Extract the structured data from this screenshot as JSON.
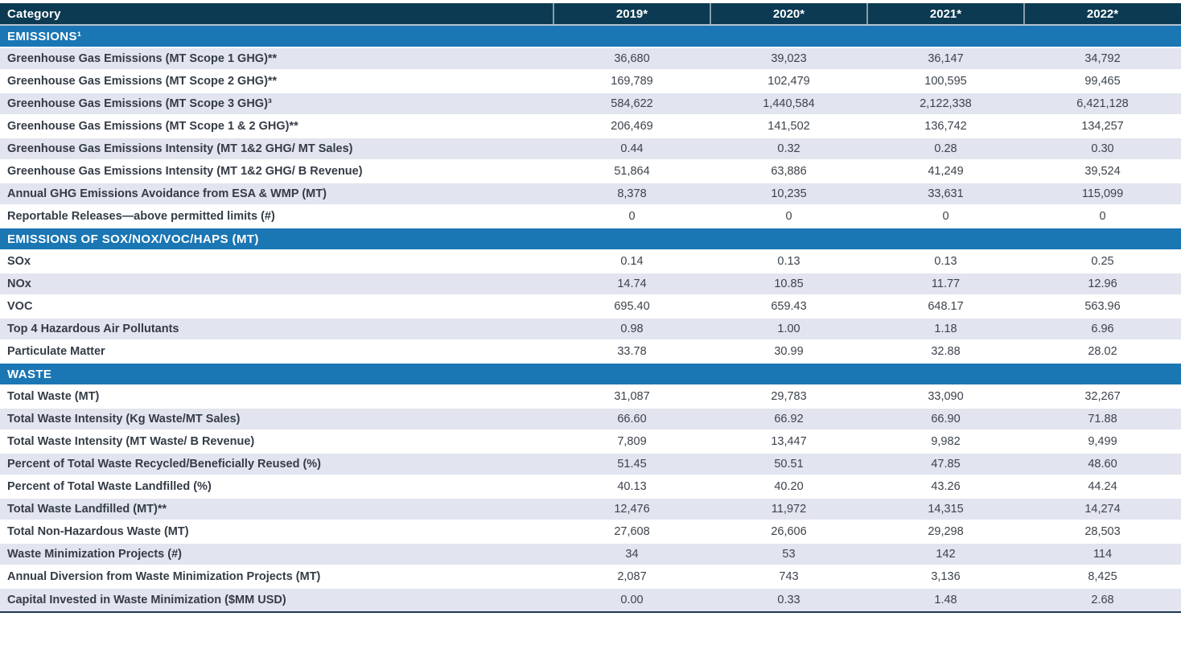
{
  "table": {
    "header": {
      "category_label": "Category",
      "years": [
        "2019*",
        "2020*",
        "2021*",
        "2022*"
      ]
    },
    "sections": [
      {
        "title": "EMISSIONS¹",
        "first_row_shaded": true,
        "rows": [
          {
            "label": "Greenhouse Gas Emissions (MT Scope 1 GHG)**",
            "values": [
              "36,680",
              "39,023",
              "36,147",
              "34,792"
            ]
          },
          {
            "label": "Greenhouse Gas Emissions (MT Scope 2 GHG)**",
            "values": [
              "169,789",
              "102,479",
              "100,595",
              "99,465"
            ]
          },
          {
            "label": "Greenhouse Gas Emissions (MT Scope 3 GHG)³",
            "values": [
              "584,622",
              "1,440,584",
              "2,122,338",
              "6,421,128"
            ]
          },
          {
            "label": "Greenhouse Gas Emissions (MT Scope 1 & 2 GHG)**",
            "values": [
              "206,469",
              "141,502",
              "136,742",
              "134,257"
            ]
          },
          {
            "label": "Greenhouse Gas Emissions Intensity (MT 1&2 GHG/ MT Sales)",
            "values": [
              "0.44",
              "0.32",
              "0.28",
              "0.30"
            ]
          },
          {
            "label": "Greenhouse Gas Emissions Intensity (MT 1&2 GHG/ B Revenue)",
            "values": [
              "51,864",
              "63,886",
              "41,249",
              "39,524"
            ]
          },
          {
            "label": "Annual GHG Emissions Avoidance from ESA & WMP (MT)",
            "values": [
              "8,378",
              "10,235",
              "33,631",
              "115,099"
            ]
          },
          {
            "label": "Reportable Releases—above permitted limits (#)",
            "values": [
              "0",
              "0",
              "0",
              "0"
            ]
          }
        ]
      },
      {
        "title": "EMISSIONS OF SOX/NOX/VOC/HAPS (MT)",
        "first_row_shaded": false,
        "rows": [
          {
            "label": "SOx",
            "values": [
              "0.14",
              "0.13",
              "0.13",
              "0.25"
            ]
          },
          {
            "label": "NOx",
            "values": [
              "14.74",
              "10.85",
              "11.77",
              "12.96"
            ]
          },
          {
            "label": "VOC",
            "values": [
              "695.40",
              "659.43",
              "648.17",
              "563.96"
            ]
          },
          {
            "label": "Top 4 Hazardous Air Pollutants",
            "values": [
              "0.98",
              "1.00",
              "1.18",
              "6.96"
            ]
          },
          {
            "label": "Particulate Matter",
            "values": [
              "33.78",
              "30.99",
              "32.88",
              "28.02"
            ]
          }
        ]
      },
      {
        "title": "WASTE",
        "first_row_shaded": false,
        "rows": [
          {
            "label": "Total Waste (MT)",
            "values": [
              "31,087",
              "29,783",
              "33,090",
              "32,267"
            ]
          },
          {
            "label": "Total Waste Intensity (Kg Waste/MT Sales)",
            "values": [
              "66.60",
              "66.92",
              "66.90",
              "71.88"
            ]
          },
          {
            "label": "Total Waste Intensity (MT Waste/ B Revenue)",
            "values": [
              "7,809",
              "13,447",
              "9,982",
              "9,499"
            ]
          },
          {
            "label": "Percent of Total Waste Recycled/Beneficially Reused (%)",
            "values": [
              "51.45",
              "50.51",
              "47.85",
              "48.60"
            ]
          },
          {
            "label": "Percent of Total Waste Landfilled (%)",
            "values": [
              "40.13",
              "40.20",
              "43.26",
              "44.24"
            ]
          },
          {
            "label": "Total Waste Landfilled (MT)**",
            "values": [
              "12,476",
              "11,972",
              "14,315",
              "14,274"
            ]
          },
          {
            "label": "Total Non-Hazardous Waste (MT)",
            "values": [
              "27,608",
              "26,606",
              "29,298",
              "28,503"
            ]
          },
          {
            "label": "Waste Minimization Projects (#)",
            "values": [
              "34",
              "53",
              "142",
              "114"
            ]
          },
          {
            "label": "Annual Diversion from Waste Minimization Projects (MT)",
            "values": [
              "2,087",
              "743",
              "3,136",
              "8,425"
            ]
          },
          {
            "label": "Capital Invested in Waste Minimization ($MM USD)",
            "values": [
              "0.00",
              "0.33",
              "1.48",
              "2.68"
            ]
          }
        ]
      }
    ]
  },
  "colors": {
    "header_bg": "#0c3a52",
    "section_bg": "#1b76b4",
    "shaded_row_bg": "#e2e4ef",
    "row_text": "#39414b",
    "header_text": "#ffffff",
    "bottom_border": "#1c3a52"
  },
  "chart_data": {
    "type": "table",
    "title": "Environmental performance data table (Emissions and Waste)",
    "columns": [
      "Category",
      "2019*",
      "2020*",
      "2021*",
      "2022*"
    ],
    "sections": [
      {
        "section": "EMISSIONS¹",
        "rows": [
          {
            "category": "Greenhouse Gas Emissions (MT Scope 1 GHG)**",
            "values": [
              36680,
              39023,
              36147,
              34792
            ]
          },
          {
            "category": "Greenhouse Gas Emissions (MT Scope 2 GHG)**",
            "values": [
              169789,
              102479,
              100595,
              99465
            ]
          },
          {
            "category": "Greenhouse Gas Emissions (MT Scope 3 GHG)³",
            "values": [
              584622,
              1440584,
              2122338,
              6421128
            ]
          },
          {
            "category": "Greenhouse Gas Emissions (MT Scope 1 & 2 GHG)**",
            "values": [
              206469,
              141502,
              136742,
              134257
            ]
          },
          {
            "category": "Greenhouse Gas Emissions Intensity (MT 1&2 GHG/ MT Sales)",
            "values": [
              0.44,
              0.32,
              0.28,
              0.3
            ]
          },
          {
            "category": "Greenhouse Gas Emissions Intensity (MT 1&2 GHG/ B Revenue)",
            "values": [
              51864,
              63886,
              41249,
              39524
            ]
          },
          {
            "category": "Annual GHG Emissions Avoidance from ESA & WMP (MT)",
            "values": [
              8378,
              10235,
              33631,
              115099
            ]
          },
          {
            "category": "Reportable Releases—above permitted limits (#)",
            "values": [
              0,
              0,
              0,
              0
            ]
          }
        ]
      },
      {
        "section": "EMISSIONS OF SOX/NOX/VOC/HAPS (MT)",
        "rows": [
          {
            "category": "SOx",
            "values": [
              0.14,
              0.13,
              0.13,
              0.25
            ]
          },
          {
            "category": "NOx",
            "values": [
              14.74,
              10.85,
              11.77,
              12.96
            ]
          },
          {
            "category": "VOC",
            "values": [
              695.4,
              659.43,
              648.17,
              563.96
            ]
          },
          {
            "category": "Top 4 Hazardous Air Pollutants",
            "values": [
              0.98,
              1.0,
              1.18,
              6.96
            ]
          },
          {
            "category": "Particulate Matter",
            "values": [
              33.78,
              30.99,
              32.88,
              28.02
            ]
          }
        ]
      },
      {
        "section": "WASTE",
        "rows": [
          {
            "category": "Total Waste (MT)",
            "values": [
              31087,
              29783,
              33090,
              32267
            ]
          },
          {
            "category": "Total Waste Intensity (Kg Waste/MT Sales)",
            "values": [
              66.6,
              66.92,
              66.9,
              71.88
            ]
          },
          {
            "category": "Total Waste Intensity (MT Waste/ B Revenue)",
            "values": [
              7809,
              13447,
              9982,
              9499
            ]
          },
          {
            "category": "Percent of Total Waste Recycled/Beneficially Reused (%)",
            "values": [
              51.45,
              50.51,
              47.85,
              48.6
            ]
          },
          {
            "category": "Percent of Total Waste Landfilled (%)",
            "values": [
              40.13,
              40.2,
              43.26,
              44.24
            ]
          },
          {
            "category": "Total Waste Landfilled (MT)**",
            "values": [
              12476,
              11972,
              14315,
              14274
            ]
          },
          {
            "category": "Total Non-Hazardous Waste (MT)",
            "values": [
              27608,
              26606,
              29298,
              28503
            ]
          },
          {
            "category": "Waste Minimization Projects (#)",
            "values": [
              34,
              53,
              142,
              114
            ]
          },
          {
            "category": "Annual Diversion from Waste Minimization Projects (MT)",
            "values": [
              2087,
              743,
              3136,
              8425
            ]
          },
          {
            "category": "Capital Invested in Waste Minimization ($MM USD)",
            "values": [
              0.0,
              0.33,
              1.48,
              2.68
            ]
          }
        ]
      }
    ]
  }
}
